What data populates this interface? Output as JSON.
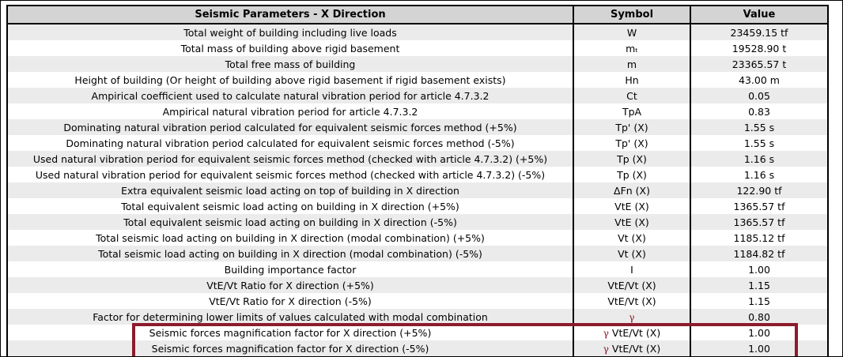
{
  "colors": {
    "header_bg": "#d4d4d4",
    "row_bg": "#ffffff",
    "row_alt_bg": "#ebebeb",
    "border": "#000000",
    "text": "#000000",
    "highlight": "#8c1b2b",
    "gamma": "#8c1b2b"
  },
  "table": {
    "headers": {
      "title": "Seismic Parameters - X Direction",
      "symbol": "Symbol",
      "value": "Value"
    },
    "rows": [
      {
        "desc": "Total weight of building including live loads",
        "symbol": "W",
        "value": "23459.15 tf",
        "highlighted": false
      },
      {
        "desc": "Total mass of building above rigid basement",
        "symbol": "mₜ",
        "value": "19528.90 t",
        "highlighted": false
      },
      {
        "desc": "Total free mass of building",
        "symbol": "m",
        "value": "23365.57 t",
        "highlighted": false
      },
      {
        "desc": "Height of building (Or height of building above rigid basement if rigid basement exists)",
        "symbol": "Hn",
        "value": "43.00 m",
        "highlighted": false
      },
      {
        "desc": "Ampirical coefficient used to calculate natural vibration period for article 4.7.3.2",
        "symbol": "Ct",
        "value": "0.05",
        "highlighted": false
      },
      {
        "desc": "Ampirical natural vibration period for article 4.7.3.2",
        "symbol": "TpA",
        "value": "0.83",
        "highlighted": false
      },
      {
        "desc": "Dominating natural vibration period calculated for equivalent seismic forces method (+5%)",
        "symbol": "Tp' (X)",
        "value": "1.55 s",
        "highlighted": false
      },
      {
        "desc": "Dominating natural vibration period calculated for equivalent seismic forces method (-5%)",
        "symbol": "Tp' (X)",
        "value": "1.55 s",
        "highlighted": false
      },
      {
        "desc": "Used natural vibration period for equivalent seismic forces method (checked with article 4.7.3.2) (+5%)",
        "symbol": "Tp (X)",
        "value": "1.16 s",
        "highlighted": false
      },
      {
        "desc": "Used natural vibration period for equivalent seismic forces method (checked with article 4.7.3.2) (-5%)",
        "symbol": "Tp (X)",
        "value": "1.16 s",
        "highlighted": false
      },
      {
        "desc": "Extra equivalent seismic load acting on top of building in X direction",
        "symbol": "ΔFn (X)",
        "value": "122.90 tf",
        "highlighted": false
      },
      {
        "desc": "Total equivalent seismic load acting on building in X direction (+5%)",
        "symbol": "VtE (X)",
        "value": "1365.57 tf",
        "highlighted": false
      },
      {
        "desc": "Total equivalent seismic load acting on building in X direction (-5%)",
        "symbol": "VtE (X)",
        "value": "1365.57 tf",
        "highlighted": false
      },
      {
        "desc": "Total seismic load acting on building in X direction (modal combination) (+5%)",
        "symbol": "Vt (X)",
        "value": "1185.12 tf",
        "highlighted": false
      },
      {
        "desc": "Total seismic load acting on building in X direction (modal combination) (-5%)",
        "symbol": "Vt (X)",
        "value": "1184.82 tf",
        "highlighted": false
      },
      {
        "desc": "Building importance factor",
        "symbol": "I",
        "value": "1.00",
        "highlighted": false
      },
      {
        "desc": "VtE/Vt Ratio for X direction (+5%)",
        "symbol": "VtE/Vt (X)",
        "value": "1.15",
        "highlighted": false
      },
      {
        "desc": "VtE/Vt Ratio for X direction (-5%)",
        "symbol": "VtE/Vt (X)",
        "value": "1.15",
        "highlighted": false
      },
      {
        "desc": "Factor for determining lower limits of values calculated with modal combination",
        "symbol": "γ",
        "value": "0.80",
        "highlighted": false
      },
      {
        "desc": "Seismic forces magnification factor for X direction (+5%)",
        "symbol": "γ VtE/Vt (X)",
        "value": "1.00",
        "highlighted": true
      },
      {
        "desc": "Seismic forces magnification factor for X direction (-5%)",
        "symbol": "γ VtE/Vt (X)",
        "value": "1.00",
        "highlighted": true
      }
    ]
  }
}
